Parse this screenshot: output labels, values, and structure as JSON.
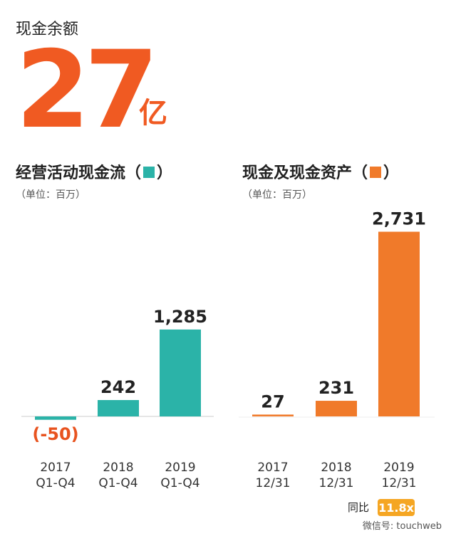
{
  "header": {
    "label": "现金余额",
    "amount": "27",
    "unit": "亿"
  },
  "chart_data": [
    {
      "type": "bar",
      "title": "经营活动现金流（　）",
      "subtitle": "（单位：百万）",
      "color": "#2bb3a8",
      "categories": [
        [
          "2017",
          "Q1-Q4"
        ],
        [
          "2018",
          "Q1-Q4"
        ],
        [
          "2019",
          "Q1-Q4"
        ]
      ],
      "values": [
        -50,
        242,
        1285
      ],
      "value_labels": [
        "(-50)",
        "242",
        "1,285"
      ],
      "ylim": [
        -500,
        3000
      ]
    },
    {
      "type": "bar",
      "title": "现金及现金资产（　）",
      "subtitle": "（单位：百万）",
      "color": "#f07a2a",
      "categories": [
        [
          "2017",
          "12/31"
        ],
        [
          "2018",
          "12/31"
        ],
        [
          "2019",
          "12/31"
        ]
      ],
      "values": [
        27,
        231,
        2731
      ],
      "value_labels": [
        "27",
        "231",
        "2,731"
      ],
      "ylim": [
        -500,
        3000
      ]
    }
  ],
  "footer": {
    "yoy_label": "同比",
    "yoy_value": "11.8x",
    "watermark": "微信号: touchweb"
  }
}
